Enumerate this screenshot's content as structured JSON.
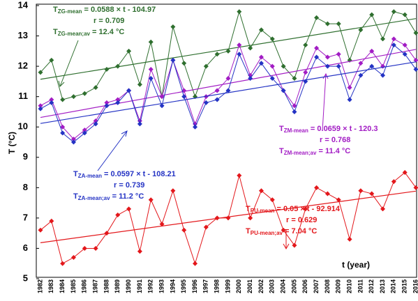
{
  "chart_data": {
    "type": "line",
    "y_label": "T (°C)",
    "x_label": "t (year)",
    "categories": [
      "1982",
      "1983",
      "1984",
      "1985",
      "1986",
      "1987",
      "1988",
      "1989",
      "1990",
      "1991",
      "1992",
      "1993",
      "1994",
      "1995",
      "1996",
      "1997",
      "1998",
      "1999",
      "2000",
      "2001",
      "2002",
      "2003",
      "2004",
      "2005",
      "2006",
      "2007",
      "2008",
      "2009",
      "2010",
      "2011",
      "2012",
      "2013",
      "2014",
      "2015",
      "2016"
    ],
    "ylim": [
      5,
      14
    ],
    "yticks": [
      5,
      6,
      7,
      8,
      9,
      10,
      11,
      12,
      13,
      14
    ],
    "series": [
      {
        "name": "ZG",
        "color": "#2f6f2f",
        "values": [
          11.8,
          12.2,
          10.9,
          11.0,
          11.1,
          11.3,
          11.9,
          12.0,
          12.5,
          11.4,
          12.8,
          11.0,
          13.3,
          12.1,
          11.0,
          12.0,
          12.4,
          12.5,
          13.8,
          12.6,
          13.2,
          12.9,
          12.0,
          11.6,
          12.7,
          13.6,
          13.4,
          13.4,
          12.2,
          13.2,
          13.7,
          12.9,
          13.8,
          13.7,
          13.1
        ],
        "trend": {
          "slope": 0.0588,
          "intercept": -104.97
        },
        "annotation": {
          "symbol": "T",
          "sub": "ZG-mean",
          "equation": " = 0.0588 × t - 104.97",
          "r": "r = 0.709",
          "av_symbol": "T",
          "av_sub": "ZG-mean;av",
          "av_value": " = 12.4 °C"
        }
      },
      {
        "name": "ZM",
        "color": "#a21cc4",
        "values": [
          10.7,
          10.9,
          10.0,
          9.6,
          9.9,
          10.2,
          10.8,
          10.9,
          11.2,
          10.2,
          11.9,
          11.0,
          12.2,
          11.2,
          10.1,
          11.0,
          11.2,
          11.6,
          12.7,
          11.7,
          12.3,
          12.0,
          11.2,
          10.7,
          11.8,
          12.6,
          12.3,
          12.4,
          11.3,
          12.1,
          12.5,
          12.0,
          12.9,
          12.7,
          12.2
        ],
        "trend": {
          "slope": 0.0659,
          "intercept": -120.3
        },
        "annotation": {
          "symbol": "T",
          "sub": "ZM-mean",
          "equation": " = 0.0659 × t - 120.3",
          "r": "r = 0.768",
          "av_symbol": "T",
          "av_sub": "ZM-mean;av",
          "av_value": " = 11.4 °C"
        }
      },
      {
        "name": "ZA",
        "color": "#2433c4",
        "values": [
          10.6,
          10.8,
          9.8,
          9.5,
          9.8,
          10.1,
          10.7,
          10.8,
          11.2,
          10.1,
          11.6,
          10.7,
          12.2,
          11.0,
          10.0,
          10.8,
          10.9,
          11.2,
          12.4,
          11.6,
          12.1,
          11.6,
          11.2,
          10.5,
          11.5,
          12.3,
          12.0,
          12.0,
          10.9,
          11.7,
          12.0,
          11.7,
          12.7,
          12.4,
          11.9
        ],
        "trend": {
          "slope": 0.0597,
          "intercept": -108.21
        },
        "annotation": {
          "symbol": "T",
          "sub": "ZA-mean",
          "equation": " = 0.0597 × t - 108.21",
          "r": "r = 0.739",
          "av_symbol": "T",
          "av_sub": "ZA-mean;av",
          "av_value": " = 11.2 °C"
        }
      },
      {
        "name": "PU",
        "color": "#e3171b",
        "values": [
          6.6,
          6.9,
          5.5,
          5.7,
          6.0,
          6.0,
          6.5,
          7.1,
          7.3,
          5.9,
          7.6,
          6.8,
          7.9,
          6.6,
          5.5,
          6.7,
          7.0,
          7.0,
          8.4,
          7.0,
          7.9,
          7.6,
          6.6,
          6.1,
          7.3,
          8.0,
          7.8,
          7.6,
          6.3,
          7.9,
          7.8,
          7.3,
          8.2,
          8.5,
          8.0
        ],
        "trend": {
          "slope": 0.05,
          "intercept": -92.914
        },
        "annotation": {
          "symbol": "T",
          "sub": "PU-mean",
          "equation": " = 0.05 × t - 92.914",
          "r": "r = 0.629",
          "av_symbol": "T",
          "av_sub": "PU-mean;av",
          "av_value": " = 7.04 °C"
        }
      }
    ]
  }
}
